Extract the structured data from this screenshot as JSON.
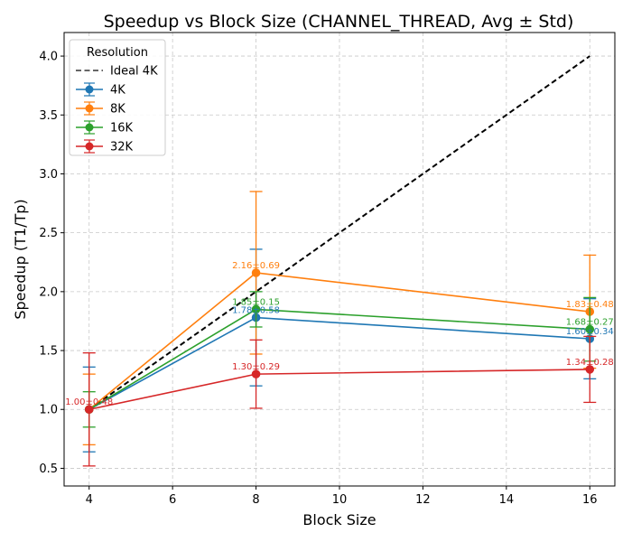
{
  "chart_data": {
    "type": "line",
    "title": "Speedup vs Block Size (CHANNEL_THREAD, Avg ± Std)",
    "xlabel": "Block Size",
    "ylabel": "Speedup (T1/Tp)",
    "xlim": [
      3.4,
      16.6
    ],
    "ylim": [
      0.35,
      4.2
    ],
    "x_ticks": [
      4,
      6,
      8,
      10,
      12,
      14,
      16
    ],
    "y_ticks": [
      0.5,
      1.0,
      1.5,
      2.0,
      2.5,
      3.0,
      3.5,
      4.0
    ],
    "grid": true,
    "legend": {
      "title": "Resolution",
      "placement": "top-left"
    },
    "x": [
      4,
      8,
      16
    ],
    "ideal": {
      "name": "Ideal 4K",
      "x": [
        4,
        8,
        16
      ],
      "y": [
        1.0,
        2.0,
        4.0
      ],
      "color": "#000000"
    },
    "series": [
      {
        "name": "4K",
        "color": "#1f77b4",
        "values": [
          1.0,
          1.78,
          1.6
        ],
        "std": [
          0.36,
          0.58,
          0.34
        ],
        "labels": [
          "",
          "1.78±0.58",
          "1.60±0.34"
        ]
      },
      {
        "name": "8K",
        "color": "#ff7f0e",
        "values": [
          1.0,
          2.16,
          1.83
        ],
        "std": [
          0.3,
          0.69,
          0.48
        ],
        "labels": [
          "",
          "2.16±0.69",
          "1.83±0.48"
        ]
      },
      {
        "name": "16K",
        "color": "#2ca02c",
        "values": [
          1.0,
          1.85,
          1.68
        ],
        "std": [
          0.15,
          0.15,
          0.27
        ],
        "labels": [
          "",
          "1.85±0.15",
          "1.68±0.27"
        ]
      },
      {
        "name": "32K",
        "color": "#d62728",
        "values": [
          1.0,
          1.3,
          1.34
        ],
        "std": [
          0.48,
          0.29,
          0.28
        ],
        "labels": [
          "1.00±0.48",
          "1.30±0.29",
          "1.34±0.28"
        ]
      }
    ]
  }
}
